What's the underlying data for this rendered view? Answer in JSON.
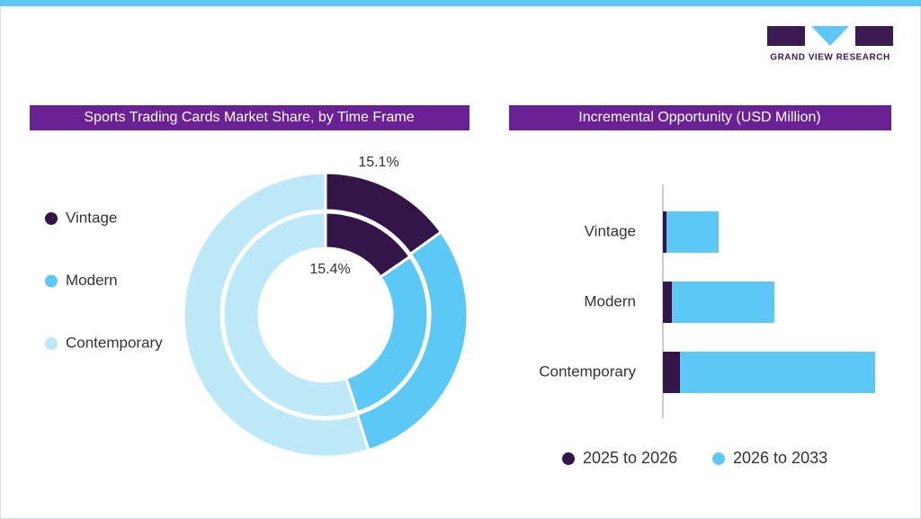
{
  "brand": {
    "name": "GRAND VIEW RESEARCH"
  },
  "chart_data": [
    {
      "type": "donut",
      "title": "Sports Trading Cards Market Share, by Time Frame",
      "categories": [
        "Vintage",
        "Modern",
        "Contemporary"
      ],
      "colors": [
        "#34154a",
        "#5bc8f5",
        "#bde8f8"
      ],
      "rings": [
        {
          "values": [
            15.1,
            30.0,
            54.9
          ],
          "value_labels": [
            "15.1%",
            null,
            null
          ]
        },
        {
          "values": [
            15.4,
            29.6,
            55.0
          ],
          "value_labels": [
            "15.4%",
            null,
            null
          ]
        }
      ]
    },
    {
      "type": "hbar-stacked",
      "title": "Incremental Opportunity (USD Million)",
      "categories": [
        "Vintage",
        "Modern",
        "Contemporary"
      ],
      "series": [
        {
          "name": "2025 to 2026",
          "color": "#34154a",
          "values": [
            4,
            10,
            19
          ]
        },
        {
          "name": "2026 to 2033",
          "color": "#5bc8f5",
          "values": [
            58,
            114,
            217
          ]
        }
      ]
    }
  ]
}
